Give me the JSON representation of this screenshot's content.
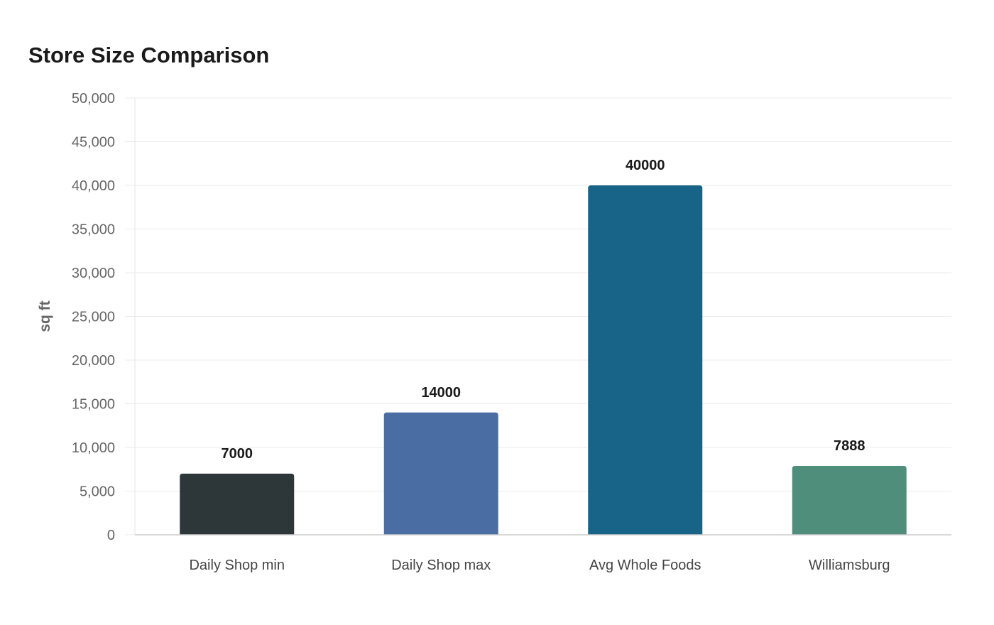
{
  "chart_data": {
    "type": "bar",
    "title": "Store Size Comparison",
    "xlabel": "",
    "ylabel": "sq ft",
    "ylim": [
      0,
      50000
    ],
    "yticks": [
      0,
      5000,
      10000,
      15000,
      20000,
      25000,
      30000,
      35000,
      40000,
      45000,
      50000
    ],
    "ytick_labels": [
      "0",
      "5,000",
      "10,000",
      "15,000",
      "20,000",
      "25,000",
      "30,000",
      "35,000",
      "40,000",
      "45,000",
      "50,000"
    ],
    "categories": [
      "Daily Shop min",
      "Daily Shop max",
      "Avg Whole Foods",
      "Williamsburg"
    ],
    "values": [
      7000,
      14000,
      40000,
      7888
    ],
    "value_labels": [
      "7000",
      "14000",
      "40000",
      "7888"
    ],
    "colors": [
      "#2d3639",
      "#4a6ea3",
      "#186388",
      "#4f8e7a"
    ],
    "grid": true,
    "legend": "none"
  }
}
